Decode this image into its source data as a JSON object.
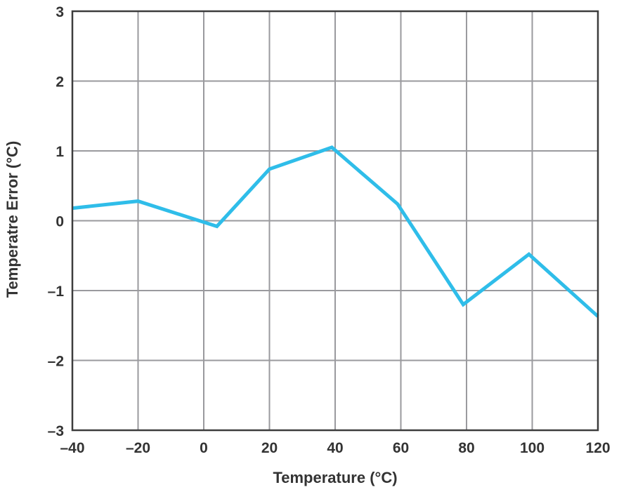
{
  "chart_data": {
    "type": "line",
    "title": "",
    "xlabel": "Temperature (°C)",
    "ylabel": "Temperatre Error (°C)",
    "xlim": [
      -40,
      120
    ],
    "ylim": [
      -3,
      3
    ],
    "xticks": [
      -40,
      -20,
      0,
      20,
      40,
      60,
      80,
      100,
      120
    ],
    "yticks": [
      -3,
      -2,
      -1,
      0,
      1,
      2,
      3
    ],
    "xtick_labels": [
      "–40",
      "–20",
      "0",
      "20",
      "40",
      "60",
      "80",
      "100",
      "120"
    ],
    "ytick_labels": [
      "–3",
      "–2",
      "–1",
      "0",
      "1",
      "2",
      "3"
    ],
    "grid": true,
    "legend": "none",
    "series": [
      {
        "color": "#2fbde9",
        "x": [
          -40,
          -20,
          4,
          20,
          39,
          59,
          79,
          99,
          120
        ],
        "y": [
          0.18,
          0.28,
          -0.08,
          0.74,
          1.05,
          0.24,
          -1.2,
          -0.48,
          -1.37
        ]
      }
    ]
  }
}
